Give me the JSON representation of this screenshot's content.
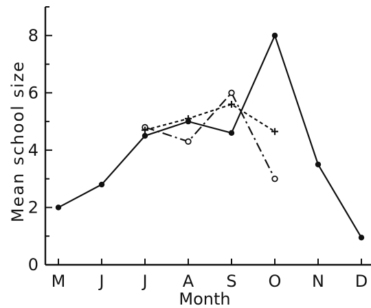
{
  "chart_data": {
    "type": "line",
    "title": "",
    "xlabel": "Month",
    "ylabel": "Mean school size",
    "categories": [
      "M",
      "J",
      "J",
      "A",
      "S",
      "O",
      "N",
      "D"
    ],
    "ylim": [
      0,
      9
    ],
    "yticks": [
      0,
      2,
      4,
      6,
      8
    ],
    "grid": false,
    "series": [
      {
        "style": "solid",
        "marker": "filled-circle",
        "color": "#111111",
        "points": [
          {
            "x": "M",
            "y": 2.0
          },
          {
            "x": "J",
            "y": 2.8
          },
          {
            "x": "J",
            "y": 4.5
          },
          {
            "x": "A",
            "y": 5.0
          },
          {
            "x": "S",
            "y": 4.6
          },
          {
            "x": "O",
            "y": 8.0
          },
          {
            "x": "N",
            "y": 3.5
          },
          {
            "x": "D",
            "y": 0.95
          }
        ]
      },
      {
        "style": "dash-dot",
        "marker": "open-circle",
        "color": "#111111",
        "points": [
          {
            "x": "J",
            "y": 4.8
          },
          {
            "x": "A",
            "y": 4.3
          },
          {
            "x": "S",
            "y": 6.0
          },
          {
            "x": "O",
            "y": 3.0
          }
        ]
      },
      {
        "style": "dotted",
        "marker": "plus",
        "color": "#111111",
        "points": [
          {
            "x": "J",
            "y": 4.7
          },
          {
            "x": "A",
            "y": 5.1
          },
          {
            "x": "S",
            "y": 5.6
          },
          {
            "x": "O",
            "y": 4.65
          }
        ]
      }
    ]
  }
}
